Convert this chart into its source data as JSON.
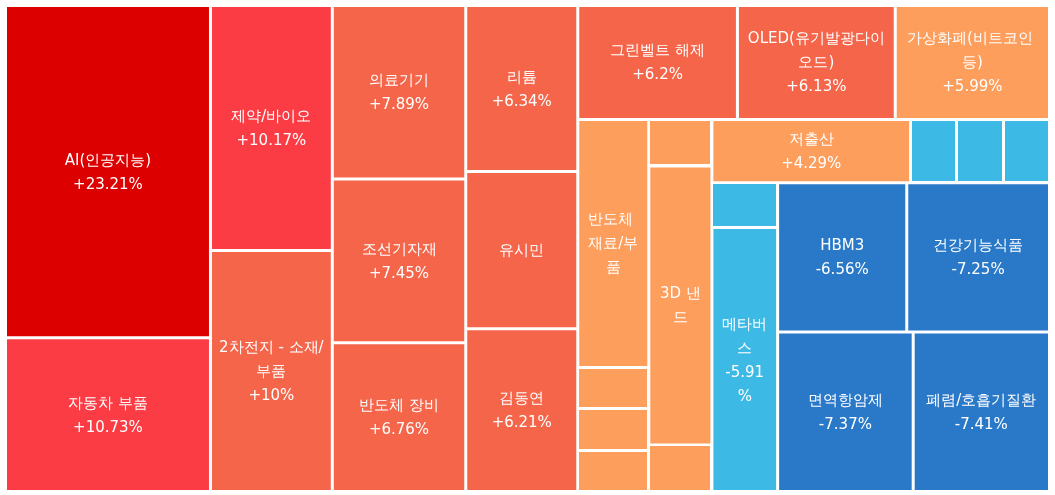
{
  "chart_data": {
    "type": "other",
    "categories": [
      "AI(인공지능)",
      "자동차 부품",
      "제약/바이오",
      "2차전지 - 소재/부품",
      "의료기기",
      "조선기자재",
      "반도체 장비",
      "리튬",
      "유시민",
      "김동연",
      "그린벨트 해제",
      "OLED(유기발광다이오드)",
      "가상화폐(비트코인 등)",
      "반도체 재료/부품",
      null,
      null,
      null,
      null,
      "3D 낸드",
      null,
      "저출산",
      null,
      null,
      null,
      null,
      "메타버스",
      "HBM3",
      "건강기능식품",
      "면역항암제",
      "폐렴/호흡기질환"
    ],
    "values": [
      23.21,
      10.73,
      10.17,
      10,
      7.89,
      7.45,
      6.76,
      6.34,
      null,
      6.21,
      6.2,
      6.13,
      5.99,
      null,
      null,
      null,
      null,
      null,
      null,
      null,
      4.29,
      null,
      null,
      null,
      null,
      -5.91,
      -6.56,
      -7.25,
      -7.37,
      -7.41
    ],
    "value_labels": [
      "+23.21%",
      "+10.73%",
      "+10.17%",
      "+10%",
      "+7.89%",
      "+7.45%",
      "+6.76%",
      "+6.34%",
      null,
      "+6.21%",
      "+6.2%",
      "+6.13%",
      "+5.99%",
      null,
      null,
      null,
      null,
      null,
      null,
      null,
      "+4.29%",
      null,
      null,
      null,
      null,
      "-5.91%",
      "-6.56%",
      "-7.25%",
      "-7.37%",
      "-7.41%"
    ],
    "colors": [
      "#dd0000",
      "#fc3c44",
      "#fc3c44",
      "#f5654a",
      "#f5654a",
      "#f5654a",
      "#f5654a",
      "#f5654a",
      "#f5654a",
      "#f5654a",
      "#f5654a",
      "#f5654a",
      "#fd9e5c",
      "#fd9e5c",
      "#fd9e5c",
      "#fd9e5c",
      "#fd9e5c",
      "#fd9e5c",
      "#fd9e5c",
      "#fd9e5c",
      "#fd9e5c",
      "#3db9e6",
      "#3db9e6",
      "#3db9e6",
      "#3db9e6",
      "#3db9e6",
      "#2a79c9",
      "#2a79c9",
      "#2a79c9",
      "#2a79c9"
    ]
  }
}
